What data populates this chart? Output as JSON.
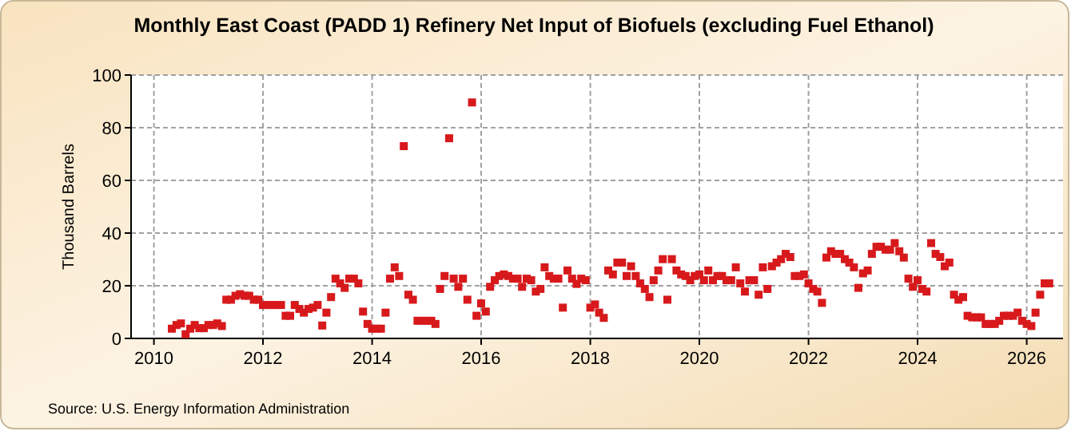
{
  "chart_data": {
    "type": "scatter",
    "title": "Monthly East Coast (PADD 1) Refinery Net Input of Biofuels (excluding Fuel Ethanol)",
    "ylabel": "Thousand Barrels",
    "annotations": [
      "Source: U.S. Energy Information Administration"
    ],
    "xlim": [
      "2009-08",
      "2026-09"
    ],
    "xticks": [
      "2010",
      "2012",
      "2014",
      "2016",
      "2018",
      "2020",
      "2022",
      "2024",
      "2026"
    ],
    "ylim": [
      0,
      100
    ],
    "yticks": [
      0,
      20,
      40,
      60,
      80,
      100
    ],
    "grid": true,
    "marker": "square",
    "x": [
      "2010-05",
      "2010-06",
      "2010-07",
      "2010-08",
      "2010-09",
      "2010-10",
      "2010-11",
      "2010-12",
      "2011-01",
      "2011-02",
      "2011-03",
      "2011-04",
      "2011-05",
      "2011-06",
      "2011-07",
      "2011-08",
      "2011-09",
      "2011-10",
      "2011-11",
      "2011-12",
      "2012-01",
      "2012-02",
      "2012-03",
      "2012-04",
      "2012-05",
      "2012-06",
      "2012-07",
      "2012-08",
      "2012-09",
      "2012-10",
      "2012-11",
      "2012-12",
      "2013-01",
      "2013-02",
      "2013-03",
      "2013-04",
      "2013-05",
      "2013-06",
      "2013-07",
      "2013-08",
      "2013-09",
      "2013-10",
      "2013-11",
      "2013-12",
      "2014-01",
      "2014-02",
      "2014-03",
      "2014-04",
      "2014-05",
      "2014-06",
      "2014-07",
      "2014-08",
      "2014-09",
      "2014-10",
      "2014-11",
      "2014-12",
      "2015-01",
      "2015-02",
      "2015-03",
      "2015-04",
      "2015-05",
      "2015-06",
      "2015-07",
      "2015-08",
      "2015-09",
      "2015-10",
      "2015-11",
      "2015-12",
      "2016-01",
      "2016-02",
      "2016-03",
      "2016-04",
      "2016-05",
      "2016-06",
      "2016-07",
      "2016-08",
      "2016-09",
      "2016-10",
      "2016-11",
      "2016-12",
      "2017-01",
      "2017-02",
      "2017-03",
      "2017-04",
      "2017-05",
      "2017-06",
      "2017-07",
      "2017-08",
      "2017-09",
      "2017-10",
      "2017-11",
      "2017-12",
      "2018-01",
      "2018-02",
      "2018-03",
      "2018-04",
      "2018-05",
      "2018-06",
      "2018-07",
      "2018-08",
      "2018-09",
      "2018-10",
      "2018-11",
      "2018-12",
      "2019-01",
      "2019-02",
      "2019-03",
      "2019-04",
      "2019-05",
      "2019-06",
      "2019-07",
      "2019-08",
      "2019-09",
      "2019-10",
      "2019-11",
      "2019-12",
      "2020-01",
      "2020-02",
      "2020-03",
      "2020-04",
      "2020-05",
      "2020-06",
      "2020-07",
      "2020-08",
      "2020-09",
      "2020-10",
      "2020-11",
      "2020-12",
      "2021-01",
      "2021-02",
      "2021-03",
      "2021-04",
      "2021-05",
      "2021-06",
      "2021-07",
      "2021-08",
      "2021-09",
      "2021-10",
      "2021-11",
      "2021-12",
      "2022-01",
      "2022-02",
      "2022-03",
      "2022-04",
      "2022-05",
      "2022-06",
      "2022-07",
      "2022-08",
      "2022-09",
      "2022-10",
      "2022-11",
      "2022-12",
      "2023-01",
      "2023-02",
      "2023-03",
      "2023-04",
      "2023-05",
      "2023-06",
      "2023-07",
      "2023-08",
      "2023-09",
      "2023-10",
      "2023-11",
      "2023-12",
      "2024-01",
      "2024-02",
      "2024-03",
      "2024-04",
      "2024-05",
      "2024-06",
      "2024-07",
      "2024-08",
      "2024-09",
      "2024-10",
      "2024-11",
      "2024-12",
      "2025-01",
      "2025-02",
      "2025-03",
      "2025-04",
      "2025-05",
      "2025-06",
      "2025-07",
      "2025-08",
      "2025-09",
      "2025-10",
      "2025-11",
      "2025-12",
      "2026-01",
      "2026-02",
      "2026-03",
      "2026-04",
      "2026-05",
      "2026-06"
    ],
    "series": [
      {
        "color": "#d7191c",
        "values": [
          3.7,
          5.1,
          5.7,
          1.6,
          3.7,
          5.1,
          3.9,
          3.9,
          5.1,
          5.1,
          5.7,
          4.7,
          14.7,
          14.7,
          16.2,
          16.8,
          16.2,
          16.2,
          14.7,
          14.7,
          12.7,
          12.7,
          12.7,
          12.7,
          12.7,
          8.6,
          8.6,
          12.7,
          11.2,
          9.8,
          11.2,
          11.7,
          12.7,
          4.9,
          9.8,
          15.7,
          22.7,
          20.9,
          19.2,
          22.7,
          22.7,
          20.9,
          10.2,
          5.5,
          3.7,
          3.7,
          3.7,
          9.8,
          22.7,
          27,
          23.7,
          73,
          16.6,
          14.7,
          6.7,
          6.7,
          6.7,
          6.7,
          5.5,
          18.8,
          23.7,
          76,
          22.7,
          19.6,
          22.7,
          14.7,
          89.6,
          8.6,
          13.3,
          10.2,
          19.6,
          22.1,
          23.7,
          24.3,
          23.7,
          22.7,
          22.7,
          19.6,
          22.7,
          22.1,
          17.8,
          18.8,
          27,
          23.7,
          22.7,
          22.7,
          11.7,
          25.8,
          22.7,
          20.7,
          22.7,
          22.1,
          11.7,
          12.9,
          9.8,
          7.8,
          25.8,
          24.3,
          28.8,
          28.8,
          23.7,
          27.4,
          23.7,
          20.9,
          18.8,
          15.7,
          22.1,
          25.8,
          30.1,
          14.7,
          30.1,
          25.8,
          24.3,
          23.7,
          22.1,
          23.7,
          24.3,
          22.1,
          25.8,
          22.1,
          23.7,
          23.7,
          22.1,
          22.1,
          27,
          20.9,
          17.8,
          22.1,
          22.1,
          16.6,
          27,
          18.8,
          27.4,
          28.8,
          30.1,
          32.1,
          30.9,
          23.7,
          23.7,
          24.3,
          20.9,
          18.8,
          17.8,
          13.5,
          30.7,
          33.1,
          32.1,
          32.1,
          30.1,
          28.8,
          27,
          19.2,
          24.7,
          25.8,
          32.1,
          34.8,
          34.8,
          33.7,
          33.7,
          36.2,
          33.1,
          30.7,
          22.7,
          19.6,
          22.1,
          18.8,
          17.8,
          36.2,
          32.1,
          30.9,
          27.4,
          28.8,
          16.6,
          14.7,
          15.7,
          8.6,
          8,
          8,
          8,
          5.5,
          5.5,
          5.5,
          6.7,
          8.6,
          8.6,
          8.6,
          9.8,
          6.7,
          5.5,
          4.7,
          9.8,
          16.6,
          20.9,
          20.9
        ]
      }
    ]
  }
}
